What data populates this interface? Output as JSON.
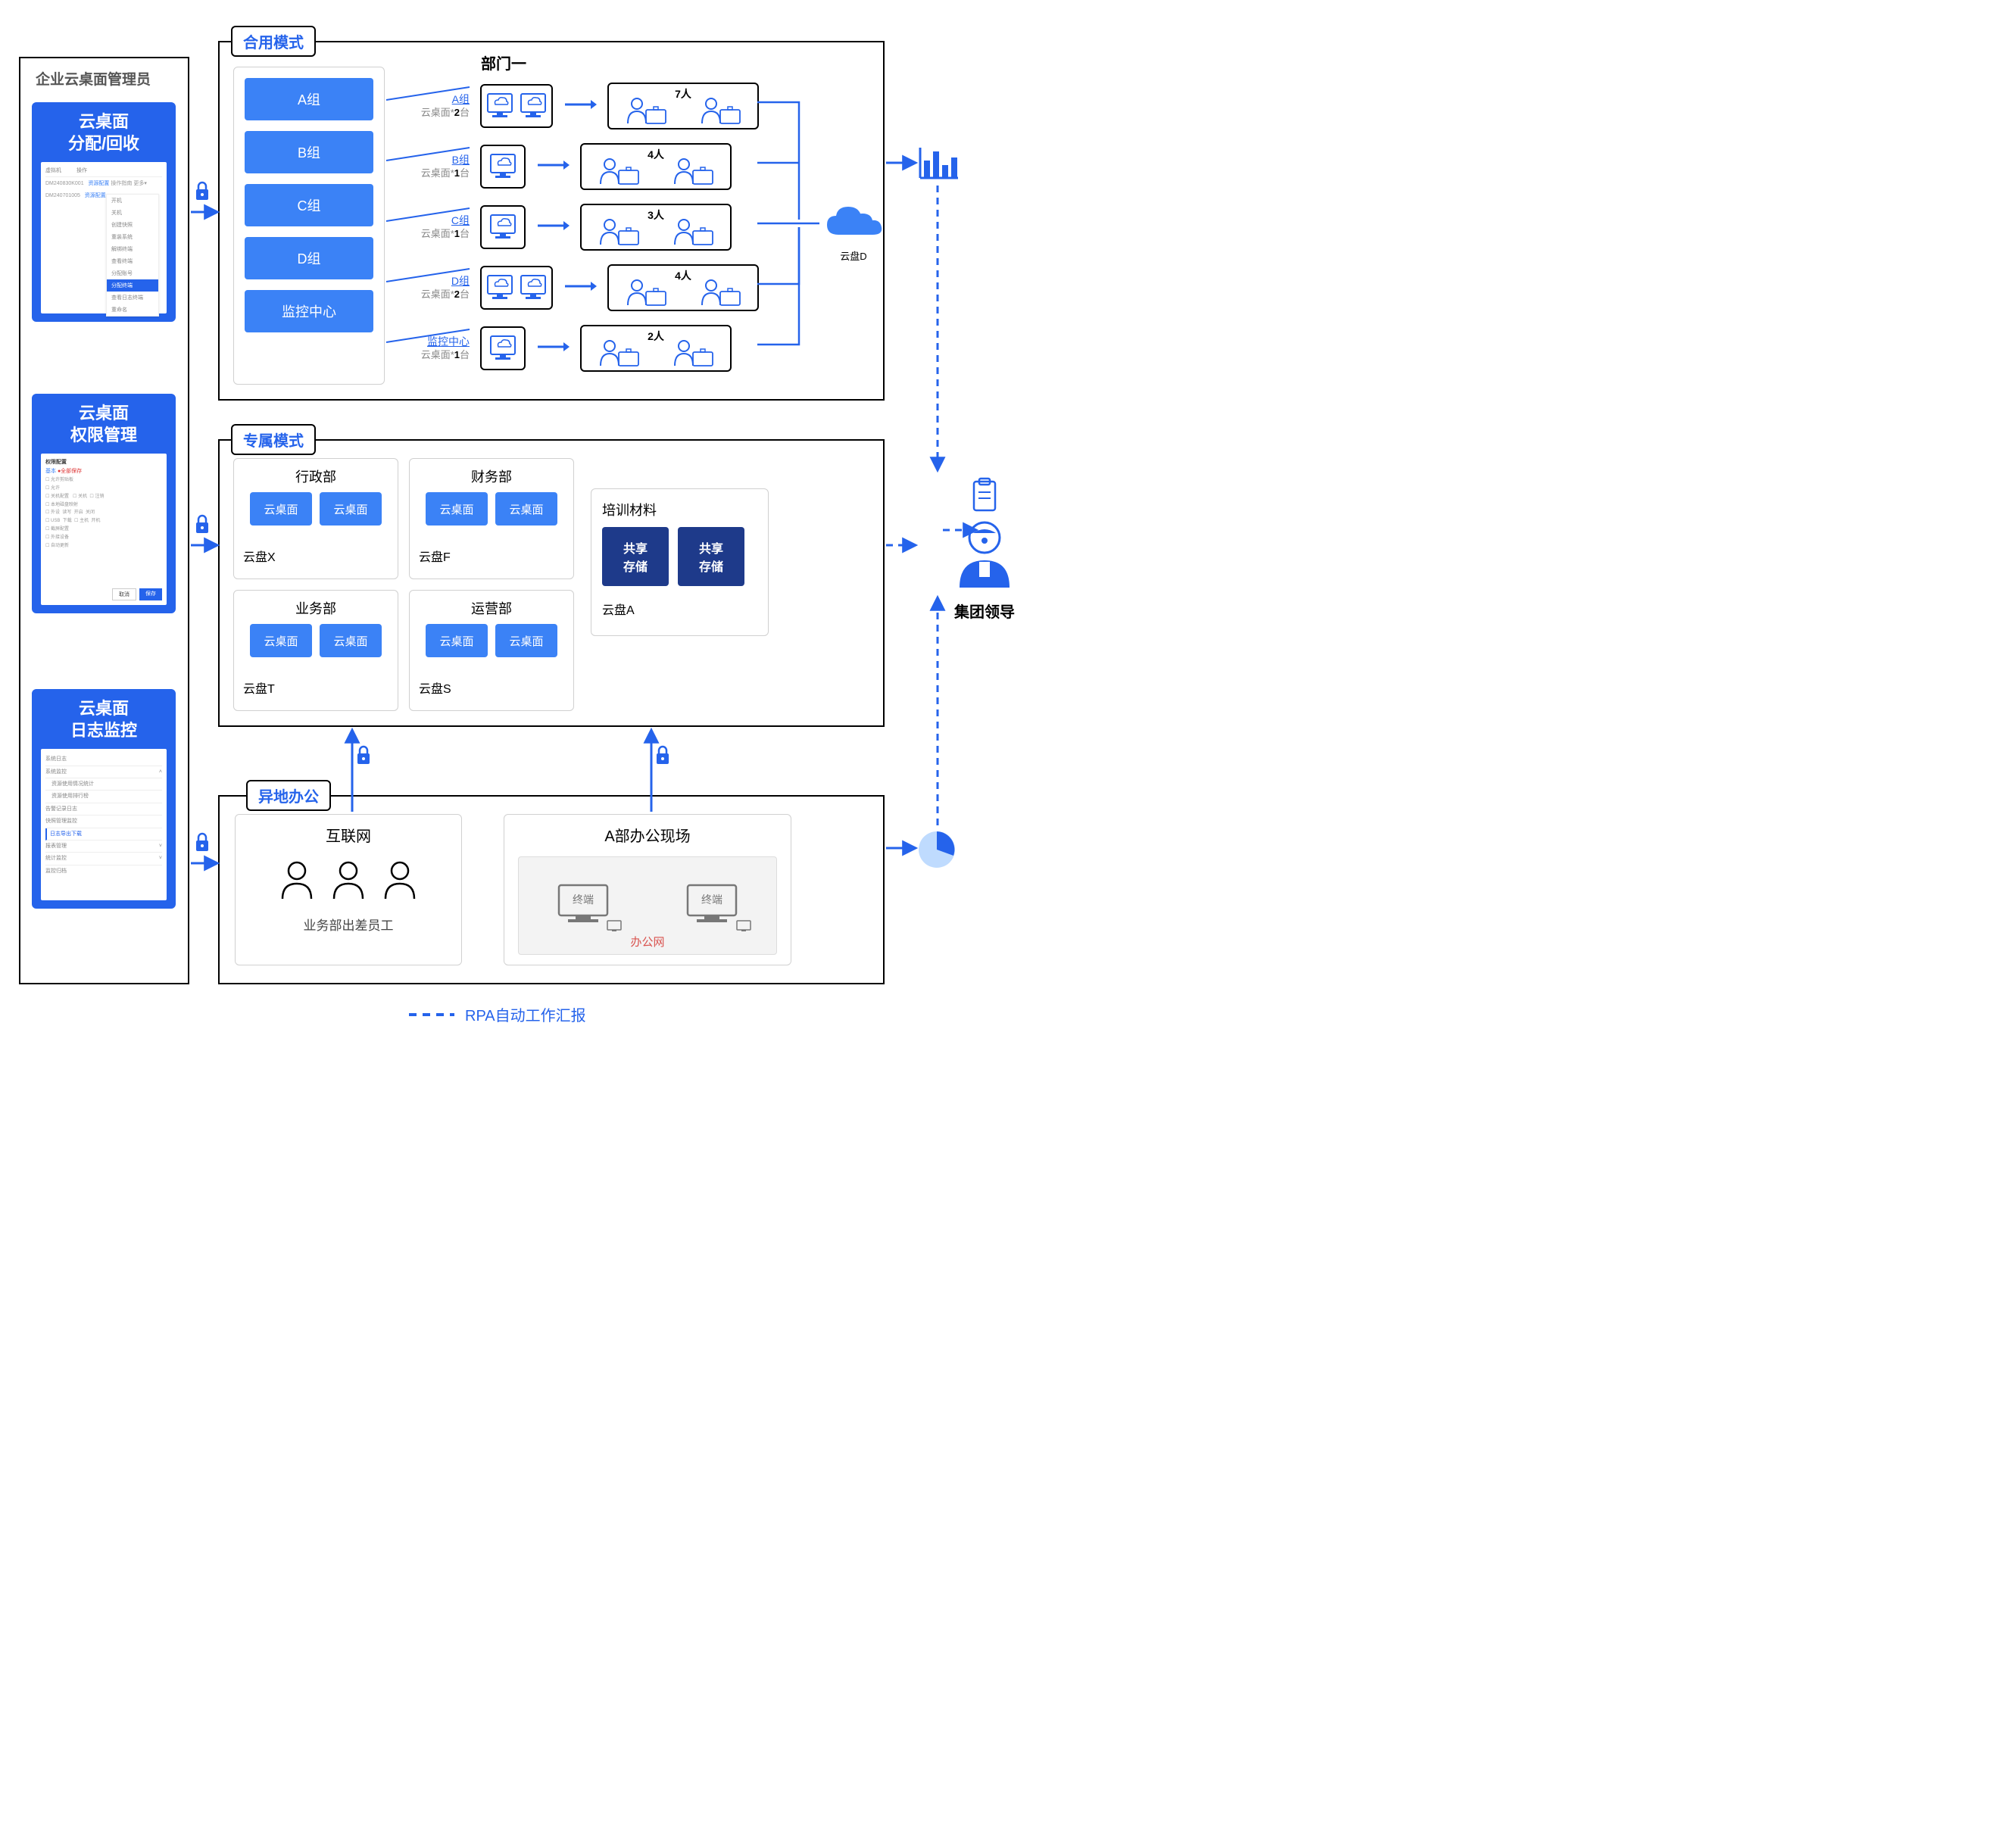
{
  "colors": {
    "blue": "#2563eb",
    "brightBlue": "#3b82f6",
    "darkBlue": "#1e3a8a",
    "black": "#000",
    "grey": "#888",
    "lightBorder": "#d0d0d0",
    "bg": "#fff"
  },
  "leftHeader": "企业云桌面管理员",
  "adminCards": [
    {
      "title1": "云桌面",
      "title2": "分配/回收"
    },
    {
      "title1": "云桌面",
      "title2": "权限管理"
    },
    {
      "title1": "云桌面",
      "title2": "日志监控"
    }
  ],
  "shared": {
    "tab": "合用模式",
    "deptTitle": "部门一",
    "groups": [
      "A组",
      "B组",
      "C组",
      "D组",
      "监控中心"
    ],
    "rows": [
      {
        "name": "A组",
        "desk": "云桌面*",
        "count": "2",
        "unit": "台",
        "monitors": 2,
        "people": "7人"
      },
      {
        "name": "B组",
        "desk": "云桌面*",
        "count": "1",
        "unit": "台",
        "monitors": 1,
        "people": "4人"
      },
      {
        "name": "C组",
        "desk": "云桌面*",
        "count": "1",
        "unit": "台",
        "monitors": 1,
        "people": "3人"
      },
      {
        "name": "D组",
        "desk": "云桌面*",
        "count": "2",
        "unit": "台",
        "monitors": 2,
        "people": "4人"
      },
      {
        "name": "监控中心",
        "desk": "云桌面*",
        "count": "1",
        "unit": "台",
        "monitors": 1,
        "people": "2人"
      }
    ],
    "cloudDisk": "云盘D"
  },
  "exclusive": {
    "tab": "专属模式",
    "depts": [
      {
        "name": "行政部",
        "disk": "云盘X",
        "items": [
          "云桌面",
          "云桌面"
        ]
      },
      {
        "name": "财务部",
        "disk": "云盘F",
        "items": [
          "云桌面",
          "云桌面"
        ]
      },
      {
        "name": "业务部",
        "disk": "云盘T",
        "items": [
          "云桌面",
          "云桌面"
        ]
      },
      {
        "name": "运营部",
        "disk": "云盘S",
        "items": [
          "云桌面",
          "云桌面"
        ]
      }
    ],
    "training": {
      "title": "培训材料",
      "disk": "云盘A",
      "items": [
        "共享\n存储",
        "共享\n存储"
      ]
    }
  },
  "remote": {
    "tab": "异地办公",
    "internet": {
      "title": "互联网",
      "sub": "业务部出差员工"
    },
    "office": {
      "title": "A部办公现场",
      "net": "办公网",
      "term": "终端"
    }
  },
  "right": {
    "leader": "集团领导"
  },
  "legend": "RPA自动工作汇报"
}
